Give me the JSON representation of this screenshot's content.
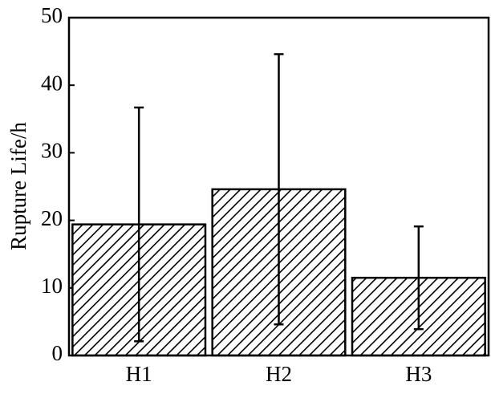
{
  "chart_data": {
    "type": "bar",
    "y_label": "Rupture Life/h",
    "categories": [
      "H1",
      "H2",
      "H3"
    ],
    "values": [
      19.4,
      24.6,
      11.5
    ],
    "errors": [
      17.3,
      20.0,
      7.6
    ],
    "color": "#000000",
    "ylim": [
      0,
      50
    ],
    "yticks": [
      0,
      10,
      20,
      30,
      40,
      50
    ],
    "grid": false
  }
}
